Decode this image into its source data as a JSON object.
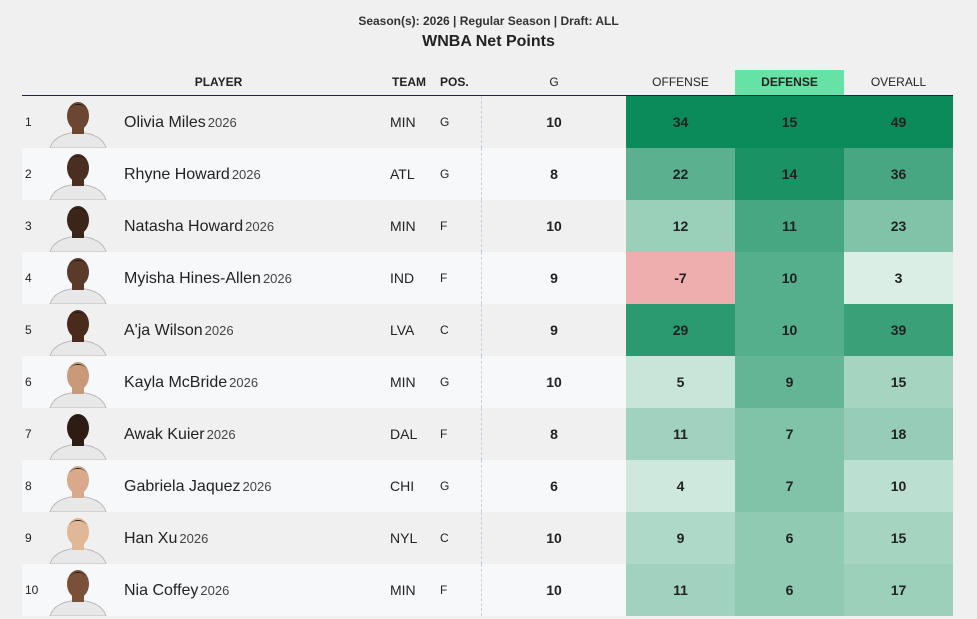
{
  "header": {
    "subtitle": "Season(s): 2026 | Regular Season | Draft: ALL",
    "title": "WNBA Net Points"
  },
  "table": {
    "columns": [
      "PLAYER",
      "TEAM",
      "POS.",
      "G",
      "OFFENSE",
      "DEFENSE",
      "OVERALL"
    ],
    "rows": [
      {
        "rank": 1,
        "name": "Olivia Miles",
        "year": "2026",
        "team": "MIN",
        "pos": "G",
        "g": 10,
        "offense": 34,
        "defense": 15,
        "overall": 49
      },
      {
        "rank": 2,
        "name": "Rhyne Howard",
        "year": "2026",
        "team": "ATL",
        "pos": "G",
        "g": 8,
        "offense": 22,
        "defense": 14,
        "overall": 36
      },
      {
        "rank": 3,
        "name": "Natasha Howard",
        "year": "2026",
        "team": "MIN",
        "pos": "F",
        "g": 10,
        "offense": 12,
        "defense": 11,
        "overall": 23
      },
      {
        "rank": 4,
        "name": "Myisha Hines-Allen",
        "year": "2026",
        "team": "IND",
        "pos": "F",
        "g": 9,
        "offense": -7,
        "defense": 10,
        "overall": 3
      },
      {
        "rank": 5,
        "name": "A'ja Wilson",
        "year": "2026",
        "team": "LVA",
        "pos": "C",
        "g": 9,
        "offense": 29,
        "defense": 10,
        "overall": 39
      },
      {
        "rank": 6,
        "name": "Kayla McBride",
        "year": "2026",
        "team": "MIN",
        "pos": "G",
        "g": 10,
        "offense": 5,
        "defense": 9,
        "overall": 15
      },
      {
        "rank": 7,
        "name": "Awak Kuier",
        "year": "2026",
        "team": "DAL",
        "pos": "F",
        "g": 8,
        "offense": 11,
        "defense": 7,
        "overall": 18
      },
      {
        "rank": 8,
        "name": "Gabriela Jaquez",
        "year": "2026",
        "team": "CHI",
        "pos": "G",
        "g": 6,
        "offense": 4,
        "defense": 7,
        "overall": 10
      },
      {
        "rank": 9,
        "name": "Han Xu",
        "year": "2026",
        "team": "NYL",
        "pos": "C",
        "g": 10,
        "offense": 9,
        "defense": 6,
        "overall": 15
      },
      {
        "rank": 10,
        "name": "Nia Coffey",
        "year": "2026",
        "team": "MIN",
        "pos": "F",
        "g": 10,
        "offense": 11,
        "defense": 6,
        "overall": 17
      }
    ]
  }
}
